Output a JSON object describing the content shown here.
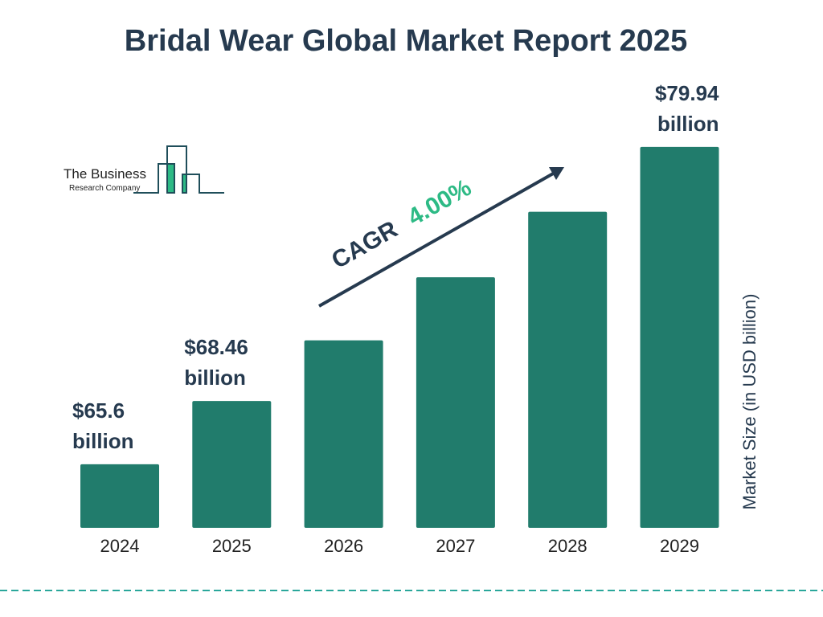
{
  "title": "Bridal Wear Global Market Report 2025",
  "logo": {
    "line1": "The Business",
    "line2": "Research Company"
  },
  "colors": {
    "bar": "#217c6c",
    "text": "#263a4f",
    "accent": "#2dba85",
    "logo_green": "#2dba85",
    "logo_line": "#1f4e5a"
  },
  "chart_data": {
    "type": "bar",
    "title": "Bridal Wear Global Market Report 2025",
    "categories": [
      "2024",
      "2025",
      "2026",
      "2027",
      "2028",
      "2029"
    ],
    "values": [
      65.6,
      68.46,
      71.2,
      74.05,
      77.01,
      79.94
    ],
    "data_labels": [
      {
        "index": 0,
        "line1": "$65.6",
        "line2": "billion"
      },
      {
        "index": 1,
        "line1": "$68.46",
        "line2": "billion"
      },
      {
        "index": 5,
        "line1": "$79.94",
        "line2": "billion"
      }
    ],
    "ylabel": "Market Size (in USD billion)",
    "xlabel": "",
    "ylim": [
      62.73,
      82
    ],
    "grid": false,
    "annotation": {
      "label": "CAGR",
      "value": "4.00%"
    }
  }
}
